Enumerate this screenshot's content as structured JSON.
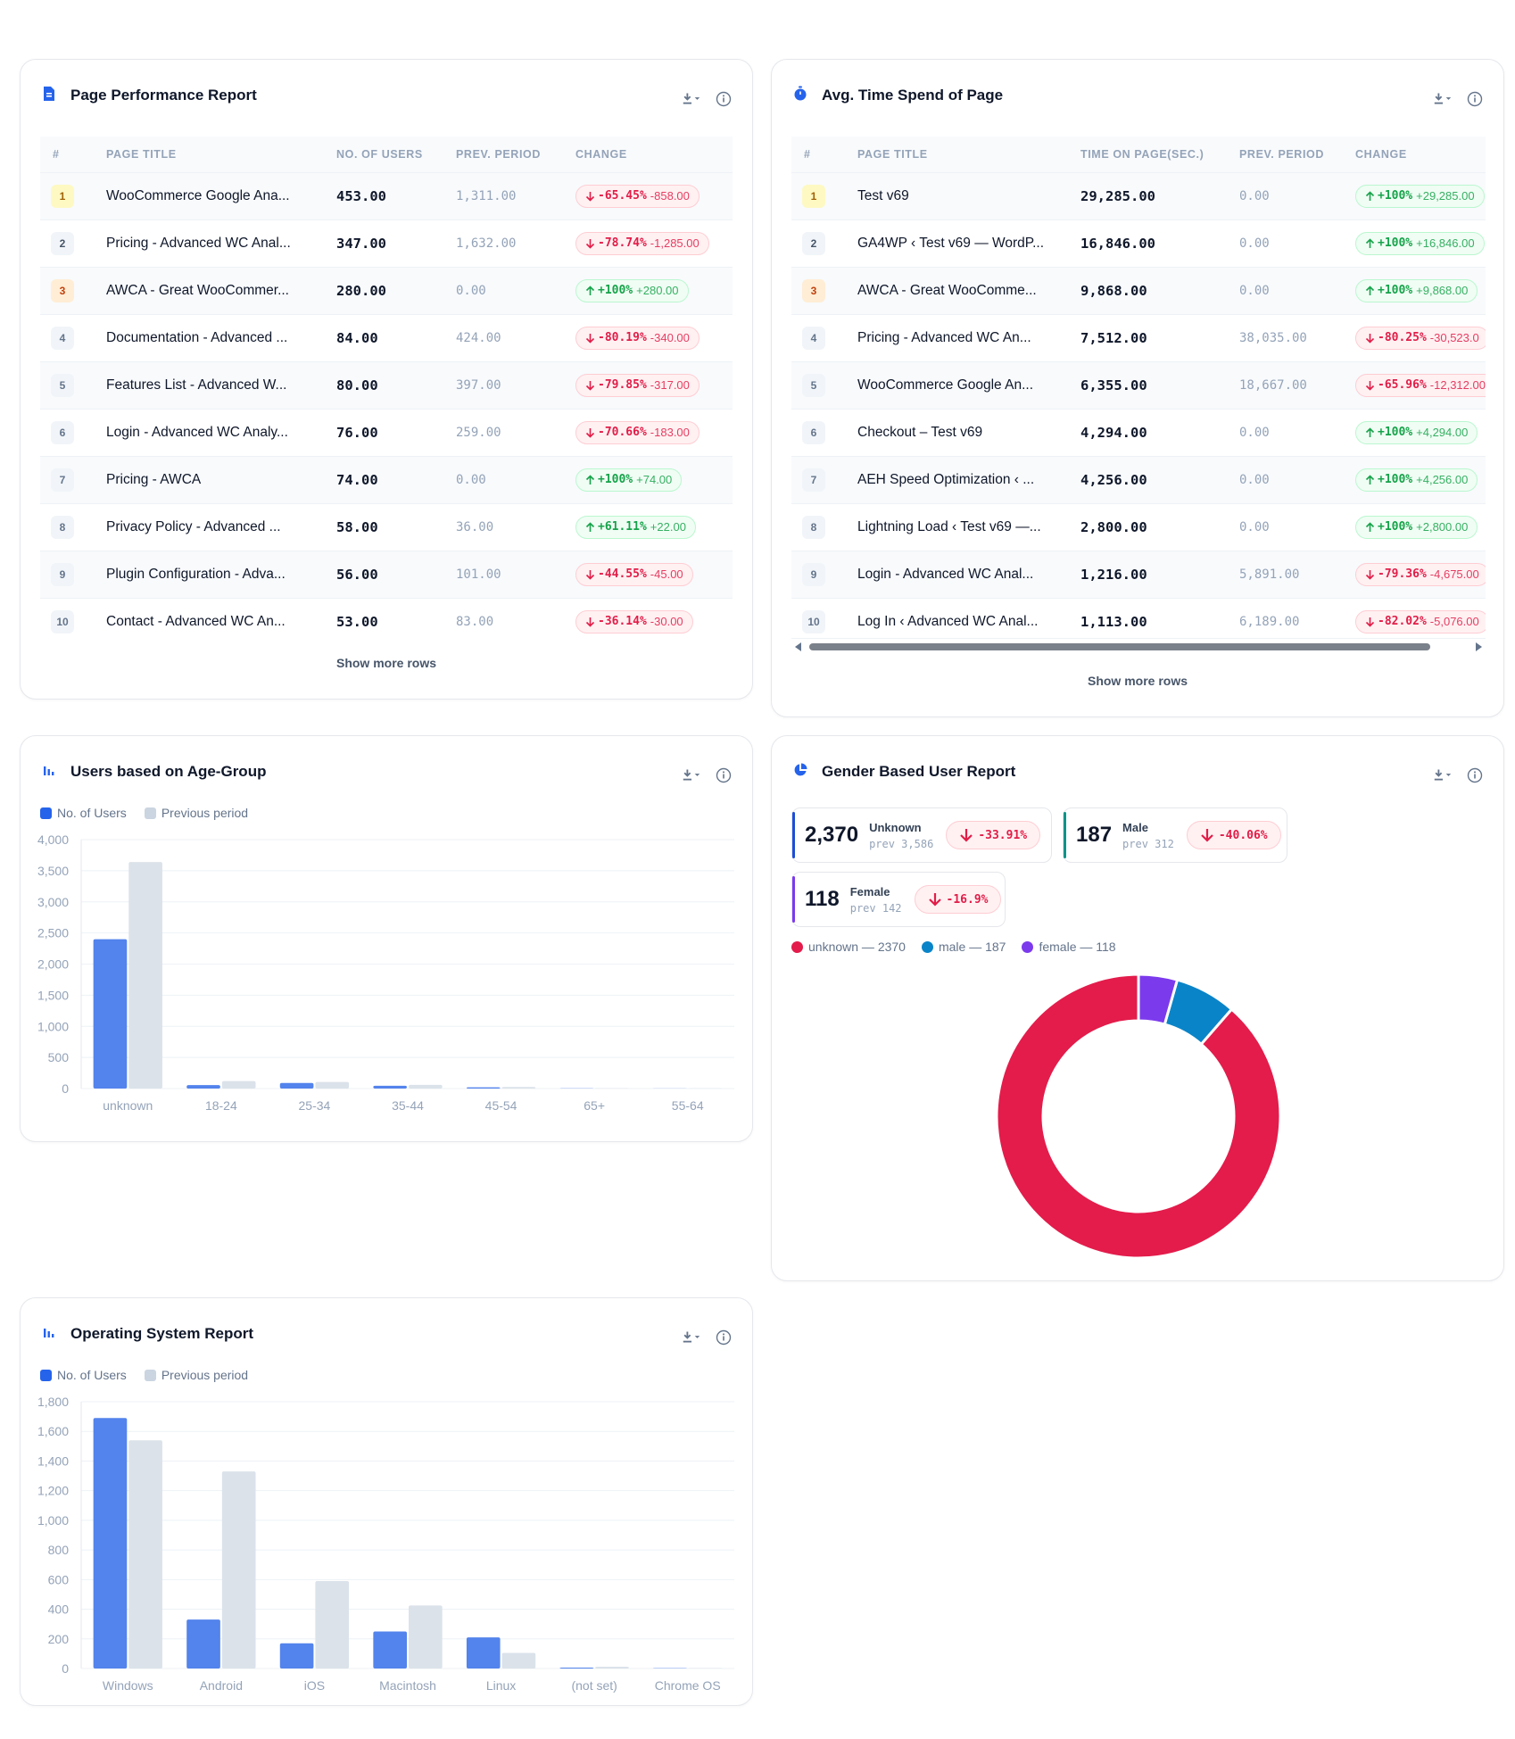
{
  "page_performance": {
    "title": "Page Performance Report",
    "columns": [
      "#",
      "PAGE TITLE",
      "NO. OF USERS",
      "PREV. PERIOD",
      "CHANGE"
    ],
    "rows": [
      {
        "rank": "1",
        "title": "WooCommerce Google Ana...",
        "users": "453.00",
        "prev": "1,311.00",
        "dir": "down",
        "pct": "-65.45%",
        "delta": "-858.00"
      },
      {
        "rank": "2",
        "title": "Pricing - Advanced WC Anal...",
        "users": "347.00",
        "prev": "1,632.00",
        "dir": "down",
        "pct": "-78.74%",
        "delta": "-1,285.00"
      },
      {
        "rank": "3",
        "title": "AWCA - Great WooCommer...",
        "users": "280.00",
        "prev": "0.00",
        "dir": "up",
        "pct": "+100%",
        "delta": "+280.00"
      },
      {
        "rank": "4",
        "title": "Documentation - Advanced ...",
        "users": "84.00",
        "prev": "424.00",
        "dir": "down",
        "pct": "-80.19%",
        "delta": "-340.00"
      },
      {
        "rank": "5",
        "title": "Features List - Advanced W...",
        "users": "80.00",
        "prev": "397.00",
        "dir": "down",
        "pct": "-79.85%",
        "delta": "-317.00"
      },
      {
        "rank": "6",
        "title": "Login - Advanced WC Analy...",
        "users": "76.00",
        "prev": "259.00",
        "dir": "down",
        "pct": "-70.66%",
        "delta": "-183.00"
      },
      {
        "rank": "7",
        "title": "Pricing - AWCA",
        "users": "74.00",
        "prev": "0.00",
        "dir": "up",
        "pct": "+100%",
        "delta": "+74.00"
      },
      {
        "rank": "8",
        "title": "Privacy Policy - Advanced ...",
        "users": "58.00",
        "prev": "36.00",
        "dir": "up",
        "pct": "+61.11%",
        "delta": "+22.00"
      },
      {
        "rank": "9",
        "title": "Plugin Configuration - Adva...",
        "users": "56.00",
        "prev": "101.00",
        "dir": "down",
        "pct": "-44.55%",
        "delta": "-45.00"
      },
      {
        "rank": "10",
        "title": "Contact - Advanced WC An...",
        "users": "53.00",
        "prev": "83.00",
        "dir": "down",
        "pct": "-36.14%",
        "delta": "-30.00"
      }
    ],
    "show_more": "Show more rows"
  },
  "avg_time": {
    "title": "Avg. Time Spend of Page",
    "columns": [
      "#",
      "PAGE TITLE",
      "TIME ON PAGE(SEC.)",
      "PREV. PERIOD",
      "CHANGE"
    ],
    "rows": [
      {
        "rank": "1",
        "title": "Test v69",
        "users": "29,285.00",
        "prev": "0.00",
        "dir": "up",
        "pct": "+100%",
        "delta": "+29,285.00"
      },
      {
        "rank": "2",
        "title": "GA4WP ‹ Test v69 — WordP...",
        "users": "16,846.00",
        "prev": "0.00",
        "dir": "up",
        "pct": "+100%",
        "delta": "+16,846.00"
      },
      {
        "rank": "3",
        "title": "AWCA - Great WooComme...",
        "users": "9,868.00",
        "prev": "0.00",
        "dir": "up",
        "pct": "+100%",
        "delta": "+9,868.00"
      },
      {
        "rank": "4",
        "title": "Pricing - Advanced WC An...",
        "users": "7,512.00",
        "prev": "38,035.00",
        "dir": "down",
        "pct": "-80.25%",
        "delta": "-30,523.0"
      },
      {
        "rank": "5",
        "title": "WooCommerce Google An...",
        "users": "6,355.00",
        "prev": "18,667.00",
        "dir": "down",
        "pct": "-65.96%",
        "delta": "-12,312.00"
      },
      {
        "rank": "6",
        "title": "Checkout – Test v69",
        "users": "4,294.00",
        "prev": "0.00",
        "dir": "up",
        "pct": "+100%",
        "delta": "+4,294.00"
      },
      {
        "rank": "7",
        "title": "AEH Speed Optimization ‹ ...",
        "users": "4,256.00",
        "prev": "0.00",
        "dir": "up",
        "pct": "+100%",
        "delta": "+4,256.00"
      },
      {
        "rank": "8",
        "title": "Lightning Load ‹ Test v69 —...",
        "users": "2,800.00",
        "prev": "0.00",
        "dir": "up",
        "pct": "+100%",
        "delta": "+2,800.00"
      },
      {
        "rank": "9",
        "title": "Login - Advanced WC Anal...",
        "users": "1,216.00",
        "prev": "5,891.00",
        "dir": "down",
        "pct": "-79.36%",
        "delta": "-4,675.00"
      },
      {
        "rank": "10",
        "title": "Log In ‹ Advanced WC Anal...",
        "users": "1,113.00",
        "prev": "6,189.00",
        "dir": "down",
        "pct": "-82.02%",
        "delta": "-5,076.00"
      }
    ],
    "show_more": "Show more rows"
  },
  "age_group": {
    "title": "Users based on Age-Group",
    "legend": [
      "No. of Users",
      "Previous period"
    ]
  },
  "gender": {
    "title": "Gender Based User Report",
    "stats": [
      {
        "value": "2,370",
        "name": "Unknown",
        "prev": "prev 3,586",
        "pct": "-33.91%",
        "color": "#1d4ed8"
      },
      {
        "value": "187",
        "name": "Male",
        "prev": "prev 312",
        "pct": "-40.06%",
        "color": "#0d9488"
      },
      {
        "value": "118",
        "name": "Female",
        "prev": "prev 142",
        "pct": "-16.9%",
        "color": "#7c3aed"
      }
    ],
    "legend": [
      "unknown — 2370",
      "male — 187",
      "female — 118"
    ]
  },
  "os_report": {
    "title": "Operating System Report",
    "legend": [
      "No. of Users",
      "Previous period"
    ]
  },
  "chart_data": [
    {
      "type": "bar",
      "categories": [
        "unknown",
        "18-24",
        "25-34",
        "35-44",
        "45-54",
        "65+",
        "55-64"
      ],
      "series": [
        {
          "name": "No. of Users",
          "values": [
            2400,
            55,
            90,
            45,
            20,
            3,
            2
          ]
        },
        {
          "name": "Previous period",
          "values": [
            3640,
            120,
            105,
            60,
            25,
            5,
            3
          ]
        }
      ],
      "yticks": [
        "0",
        "500",
        "1,000",
        "1,500",
        "2,000",
        "2,500",
        "3,000",
        "3,500",
        "4,000"
      ],
      "ylim": [
        0,
        4000
      ],
      "colors": [
        "#5383ec",
        "#dbe2ea"
      ]
    },
    {
      "type": "pie",
      "labels": [
        "unknown",
        "male",
        "female"
      ],
      "values": [
        2370,
        187,
        118
      ],
      "colors": [
        "#e31c4b",
        "#0a84c8",
        "#7c3aed"
      ]
    },
    {
      "type": "bar",
      "categories": [
        "Windows",
        "Android",
        "iOS",
        "Macintosh",
        "Linux",
        "(not set)",
        "Chrome OS"
      ],
      "series": [
        {
          "name": "No. of Users",
          "values": [
            1690,
            330,
            170,
            250,
            210,
            6,
            2
          ]
        },
        {
          "name": "Previous period",
          "values": [
            1540,
            1330,
            590,
            425,
            105,
            12,
            3
          ]
        }
      ],
      "yticks": [
        "0",
        "200",
        "400",
        "600",
        "800",
        "1,000",
        "1,200",
        "1,400",
        "1,600",
        "1,800"
      ],
      "ylim": [
        0,
        1800
      ],
      "colors": [
        "#5383ec",
        "#dbe2ea"
      ]
    }
  ]
}
